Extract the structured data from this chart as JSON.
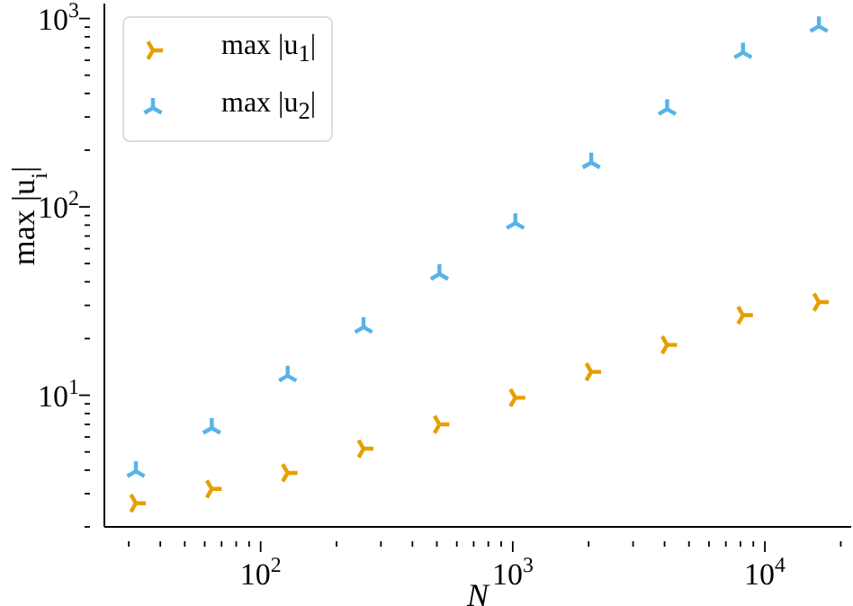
{
  "chart_data": {
    "type": "scatter",
    "xlabel": "N",
    "ylabel": "max |u$_{i}$|",
    "log": "xy",
    "grid": false,
    "legend": "top left",
    "x": [
      32,
      64,
      128,
      256,
      512,
      1024,
      2048,
      4096,
      8192,
      16384
    ],
    "xlim": [
      24,
      22000
    ],
    "ylim": [
      2,
      1200
    ],
    "xticks": [
      {
        "value": 30,
        "label": null
      },
      {
        "value": 40,
        "label": null
      },
      {
        "value": 50,
        "label": null
      },
      {
        "value": 60,
        "label": null
      },
      {
        "value": 70,
        "label": null
      },
      {
        "value": 80,
        "label": null
      },
      {
        "value": 90,
        "label": null
      },
      {
        "value": 100,
        "label": "10$^{2}$"
      },
      {
        "value": 200,
        "label": null
      },
      {
        "value": 300,
        "label": null
      },
      {
        "value": 400,
        "label": null
      },
      {
        "value": 500,
        "label": null
      },
      {
        "value": 600,
        "label": null
      },
      {
        "value": 700,
        "label": null
      },
      {
        "value": 800,
        "label": null
      },
      {
        "value": 900,
        "label": null
      },
      {
        "value": 1000,
        "label": "10$^{3}$"
      },
      {
        "value": 2000,
        "label": null
      },
      {
        "value": 3000,
        "label": null
      },
      {
        "value": 4000,
        "label": null
      },
      {
        "value": 5000,
        "label": null
      },
      {
        "value": 6000,
        "label": null
      },
      {
        "value": 7000,
        "label": null
      },
      {
        "value": 8000,
        "label": null
      },
      {
        "value": 9000,
        "label": null
      },
      {
        "value": 10000,
        "label": "10$^{4}$"
      },
      {
        "value": 20000,
        "label": null
      }
    ],
    "yticks": [
      {
        "value": 2,
        "label": null
      },
      {
        "value": 3,
        "label": null
      },
      {
        "value": 4,
        "label": null
      },
      {
        "value": 5,
        "label": null
      },
      {
        "value": 6,
        "label": null
      },
      {
        "value": 7,
        "label": null
      },
      {
        "value": 8,
        "label": null
      },
      {
        "value": 9,
        "label": null
      },
      {
        "value": 10,
        "label": "10$^{1}$"
      },
      {
        "value": 20,
        "label": null
      },
      {
        "value": 30,
        "label": null
      },
      {
        "value": 40,
        "label": null
      },
      {
        "value": 50,
        "label": null
      },
      {
        "value": 60,
        "label": null
      },
      {
        "value": 70,
        "label": null
      },
      {
        "value": 80,
        "label": null
      },
      {
        "value": 90,
        "label": null
      },
      {
        "value": 100,
        "label": "10$^{2}$"
      },
      {
        "value": 200,
        "label": null
      },
      {
        "value": 300,
        "label": null
      },
      {
        "value": 400,
        "label": null
      },
      {
        "value": 500,
        "label": null
      },
      {
        "value": 600,
        "label": null
      },
      {
        "value": 700,
        "label": null
      },
      {
        "value": 800,
        "label": null
      },
      {
        "value": 900,
        "label": null
      },
      {
        "value": 1000,
        "label": "10$^{3}$"
      }
    ],
    "series": [
      {
        "name": "max |u$_{1}$|",
        "color": "#e69f00",
        "values": [
          2.67,
          3.18,
          3.87,
          5.2,
          7.0,
          9.7,
          13.3,
          18.5,
          26.6,
          31.2
        ]
      },
      {
        "name": "max |u$_{2}$|",
        "color": "#56b4e9",
        "values": [
          3.95,
          6.7,
          12.7,
          23,
          44,
          82,
          172,
          330,
          660,
          910
        ]
      }
    ]
  }
}
